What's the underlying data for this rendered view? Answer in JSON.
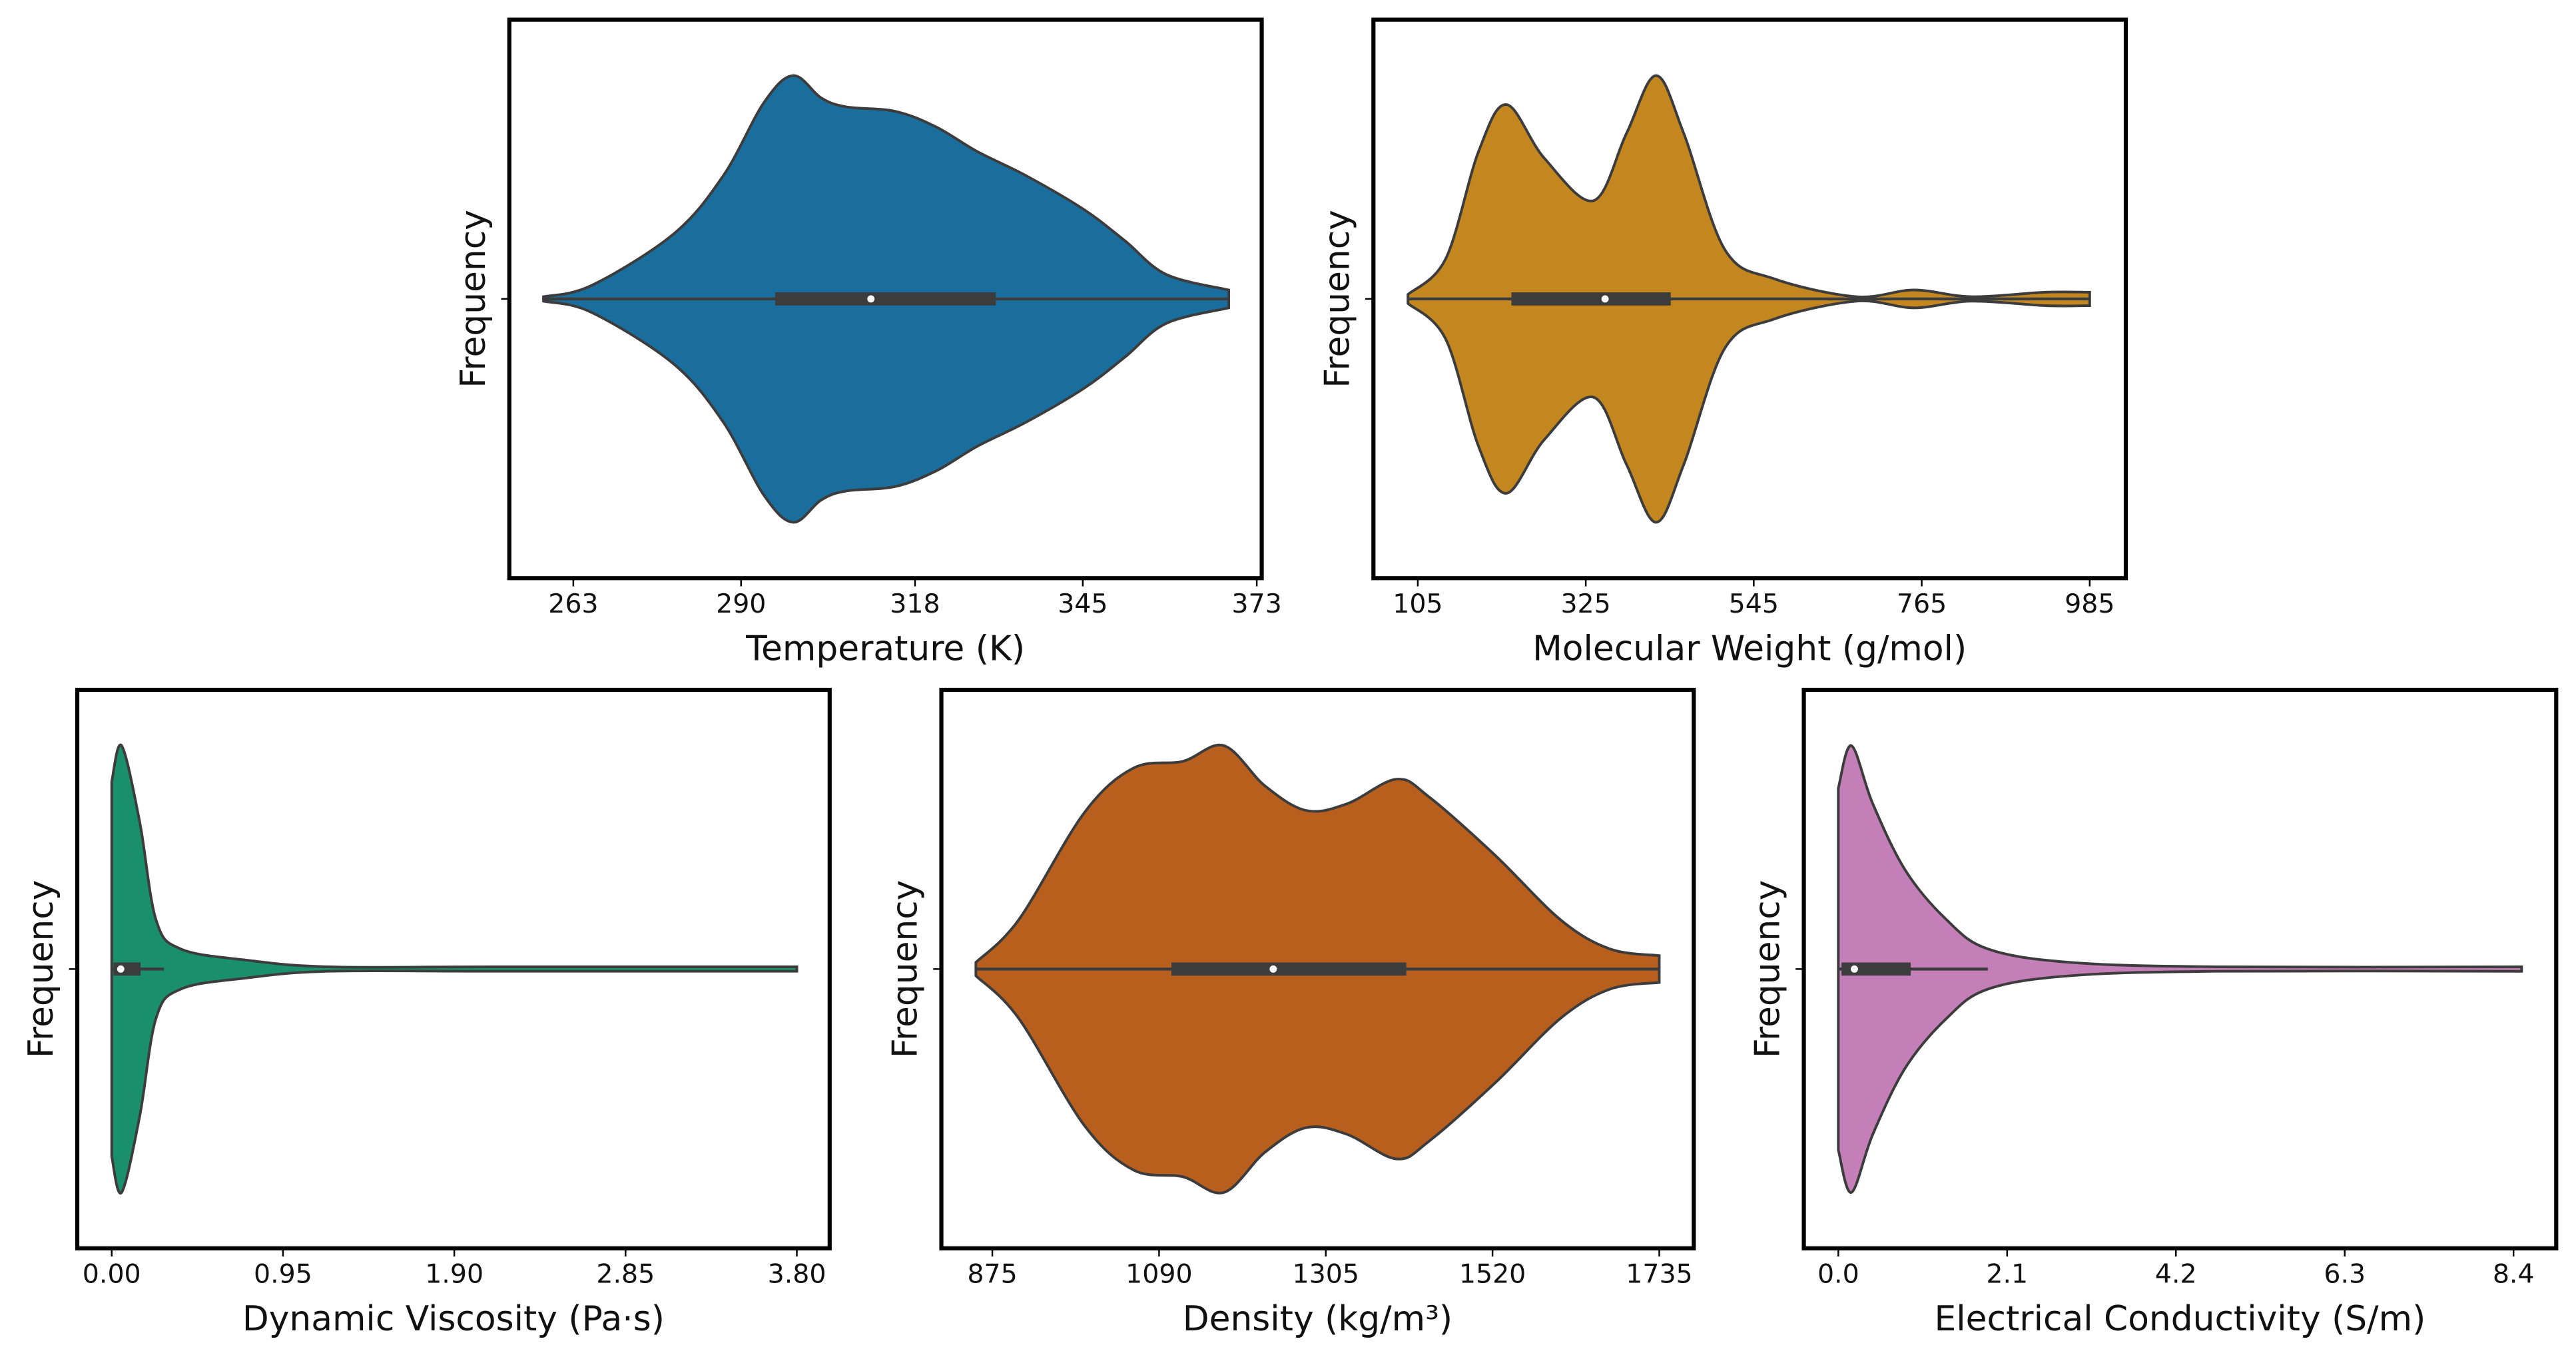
{
  "chart_data": [
    {
      "type": "violin",
      "xlabel": "Temperature (K)",
      "ylabel": "Frequency",
      "color": "#1a6e9e",
      "xlim": [
        252.7,
        373.8
      ],
      "xticks": [
        263,
        290,
        318,
        345,
        373
      ],
      "values": [
        258.2,
        265.9,
        279.1,
        287.1,
        293.7,
        298.4,
        302.9,
        306.9,
        314.8,
        321.4,
        328.0,
        336.0,
        345.2,
        351.8,
        358.4,
        368.5
      ],
      "density": [
        0.01,
        0.06,
        0.29,
        0.55,
        0.88,
        1,
        0.9,
        0.86,
        0.84,
        0.77,
        0.66,
        0.55,
        0.4,
        0.26,
        0.11,
        0.04
      ],
      "box": {
        "whisker_low": 258.2,
        "q1": 295.5,
        "median": 310.9,
        "q3": 331.0,
        "whisker_high": 368.5
      }
    },
    {
      "type": "violin",
      "xlabel": "Molecular Weight (g/mol)",
      "ylabel": "Frequency",
      "color": "#c4871f",
      "xlim": [
        46.9,
        1032.3
      ],
      "xticks": [
        105,
        325,
        545,
        765,
        985
      ],
      "values": [
        92.1,
        141.6,
        184.6,
        221.2,
        270.7,
        335.2,
        378.2,
        417.0,
        453.5,
        507.3,
        571.9,
        679.4,
        754.7,
        830.0,
        926.8,
        985.0
      ],
      "density": [
        0.02,
        0.18,
        0.66,
        0.87,
        0.63,
        0.44,
        0.74,
        1,
        0.74,
        0.22,
        0.09,
        0.01,
        0.04,
        0.01,
        0.03,
        0.03
      ],
      "box": {
        "whisker_low": 92.1,
        "q1": 227.6,
        "median": 350.3,
        "q3": 436.3,
        "whisker_high": 985.0
      }
    },
    {
      "type": "violin",
      "xlabel": "Dynamic Viscosity (Pa·s)",
      "ylabel": "Frequency",
      "color": "#198f6a",
      "xlim": [
        -0.191,
        3.982
      ],
      "xticks": [
        {
          "value": 0,
          "label": "0.00"
        },
        0.95,
        {
          "value": 1.9,
          "label": "1.90"
        },
        2.85,
        {
          "value": 3.8,
          "label": "3.80"
        }
      ],
      "values": [
        0,
        0.055,
        0.155,
        0.246,
        0.383,
        0.747,
        1.203,
        2.115,
        3.8
      ],
      "density": [
        0.84,
        1,
        0.66,
        0.22,
        0.09,
        0.04,
        0.01,
        0.01,
        0.01
      ],
      "box": {
        "whisker_low": 0,
        "q1": 0.01,
        "median": 0.05,
        "q3": 0.16,
        "whisker_high": 0.29
      }
    },
    {
      "type": "violin",
      "xlabel": "Density (kg/m³)",
      "ylabel": "Frequency",
      "color": "#b85f1e",
      "xlim": [
        809.3,
        1779.5
      ],
      "xticks": [
        875,
        1090,
        1305,
        1520,
        1735
      ],
      "values": [
        853.8,
        908.9,
        993.6,
        1057.2,
        1120.7,
        1173.7,
        1226.6,
        1279.6,
        1332.5,
        1396.1,
        1438.4,
        1523.2,
        1607.9,
        1671.4,
        1735.0
      ],
      "density": [
        0.03,
        0.22,
        0.7,
        0.9,
        0.93,
        1,
        0.82,
        0.71,
        0.74,
        0.85,
        0.77,
        0.51,
        0.22,
        0.09,
        0.06
      ],
      "box": {
        "whisker_low": 853.8,
        "q1": 1105.9,
        "median": 1237.2,
        "q3": 1408.8,
        "whisker_high": 1735.0
      }
    },
    {
      "type": "violin",
      "xlabel": "Electrical Conductivity (S/m)",
      "ylabel": "Frequency",
      "color": "#c47fb8",
      "xlim": [
        -0.429,
        8.931
      ],
      "xticks": [
        {
          "value": 0,
          "label": "0.0"
        },
        2.1,
        4.2,
        6.3,
        8.4
      ],
      "values": [
        0,
        0.163,
        0.429,
        0.838,
        1.349,
        1.86,
        2.882,
        4.721,
        8.5
      ],
      "density": [
        0.81,
        1,
        0.74,
        0.44,
        0.22,
        0.09,
        0.03,
        0.01,
        0.01
      ],
      "box": {
        "whisker_low": 0,
        "q1": 0.04,
        "median": 0.2,
        "q3": 0.9,
        "whisker_high": 1.86
      }
    }
  ]
}
